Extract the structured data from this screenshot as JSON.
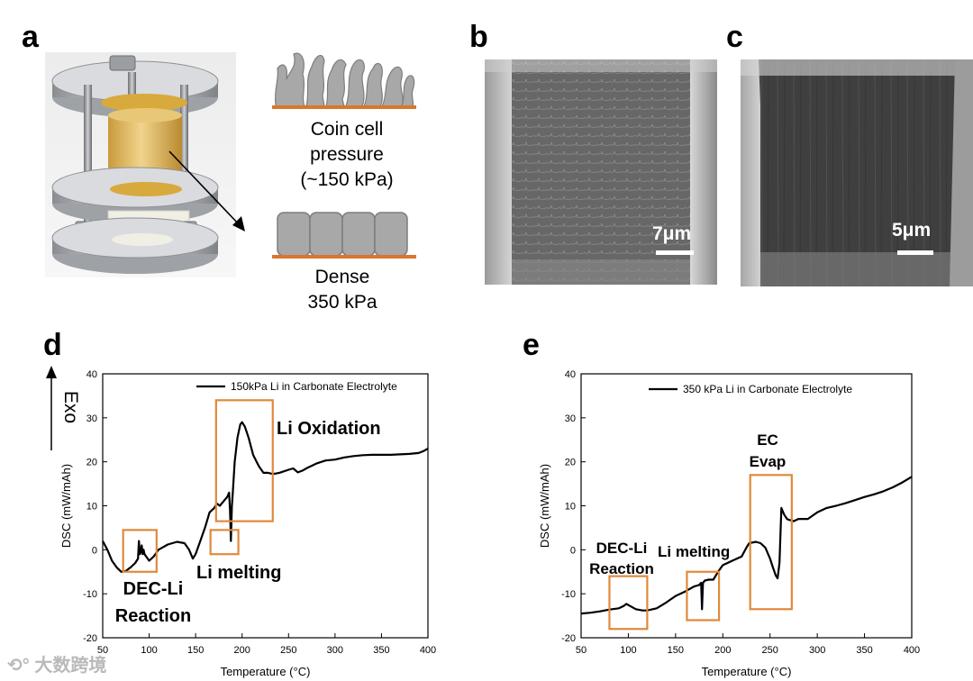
{
  "figure": {
    "panel_letters": {
      "a": "a",
      "b": "b",
      "c": "c",
      "d": "d",
      "e": "e"
    },
    "panel_a": {
      "caption_top": [
        "Coin cell",
        "pressure",
        "(~150 kPa)"
      ],
      "caption_bottom": [
        "Dense",
        "350 kPa"
      ]
    },
    "panel_b": {
      "scale_label": "7μm"
    },
    "panel_c": {
      "scale_label": "5μm"
    },
    "exo_label": "Exo",
    "watermark": "大数跨境",
    "colors": {
      "box": "#E0893A",
      "line": "#000000",
      "electrode": "#D9772E",
      "grain": "#A8A8A8"
    }
  },
  "chart_data": [
    {
      "id": "d",
      "type": "line",
      "title": "",
      "legend": "150kPa Li in Carbonate Electrolyte",
      "legend_placement": "top-right",
      "xlabel": "Temperature (°C)",
      "ylabel": "DSC (mW/mAh)",
      "xlim": [
        50,
        400
      ],
      "ylim": [
        -20,
        40
      ],
      "xticks": [
        50,
        100,
        150,
        200,
        250,
        300,
        350,
        400
      ],
      "yticks": [
        -20,
        -10,
        0,
        10,
        20,
        30,
        40
      ],
      "series": [
        {
          "name": "150kPa Li in Carbonate Electrolyte",
          "x": [
            50,
            55,
            60,
            65,
            70,
            75,
            80,
            85,
            88,
            89,
            90,
            91,
            92,
            93,
            94,
            95,
            100,
            105,
            110,
            120,
            130,
            138,
            143,
            147,
            150,
            155,
            160,
            165,
            170,
            173,
            176,
            180,
            184,
            186,
            187,
            188,
            189,
            190,
            192,
            195,
            198,
            200,
            203,
            207,
            212,
            218,
            223,
            228,
            232,
            235,
            240,
            250,
            255,
            260,
            265,
            270,
            280,
            290,
            300,
            310,
            320,
            330,
            340,
            350,
            360,
            370,
            380,
            390,
            395,
            400
          ],
          "y": [
            2,
            0,
            -2.5,
            -4,
            -5,
            -4.8,
            -4,
            -3,
            -2,
            2,
            -1,
            -0.5,
            1,
            -1,
            0,
            -1,
            -2.5,
            -1.5,
            0,
            1.2,
            1.8,
            1.5,
            0,
            -2,
            -1,
            2,
            5,
            8.5,
            9.5,
            10.5,
            10,
            11,
            12,
            13,
            9,
            2,
            10,
            13,
            20,
            25.5,
            28.5,
            29,
            28,
            25.5,
            21.5,
            19,
            17.5,
            17.5,
            17.3,
            17.3,
            17.5,
            18.2,
            18.5,
            17.6,
            18,
            18.6,
            19.6,
            20.3,
            20.5,
            21,
            21.3,
            21.5,
            21.6,
            21.6,
            21.6,
            21.7,
            21.8,
            22,
            22.4,
            23
          ]
        }
      ],
      "annotations": [
        {
          "text": "Li Oxidation",
          "box": {
            "x0": 172,
            "x1": 233,
            "y0": 6.5,
            "y1": 34
          }
        },
        {
          "text": "Li melting",
          "box": {
            "x0": 166,
            "x1": 196,
            "y0": -1,
            "y1": 4.5
          }
        },
        {
          "text": "DEC-Li Reaction",
          "lines": [
            "DEC-Li",
            "Reaction"
          ],
          "box": {
            "x0": 72,
            "x1": 108,
            "y0": -5,
            "y1": 4.5
          }
        }
      ]
    },
    {
      "id": "e",
      "type": "line",
      "title": "",
      "legend": "350 kPa Li in Carbonate Electrolyte",
      "legend_placement": "top-right",
      "xlabel": "Temperature (°C)",
      "ylabel": "DSC (mW/mAh)",
      "xlim": [
        50,
        400
      ],
      "ylim": [
        -20,
        40
      ],
      "xticks": [
        50,
        100,
        150,
        200,
        250,
        300,
        350,
        400
      ],
      "yticks": [
        -20,
        -10,
        0,
        10,
        20,
        30,
        40
      ],
      "series": [
        {
          "name": "350 kPa Li in Carbonate Electrolyte",
          "x": [
            50,
            60,
            70,
            80,
            90,
            95,
            98,
            102,
            108,
            115,
            120,
            130,
            140,
            150,
            160,
            170,
            175,
            177,
            178,
            179,
            181,
            185,
            190,
            195,
            200,
            205,
            210,
            215,
            220,
            225,
            228,
            235,
            240,
            245,
            250,
            253,
            256,
            258,
            260,
            261,
            262,
            265,
            268,
            270,
            275,
            280,
            285,
            290,
            300,
            310,
            320,
            330,
            340,
            350,
            360,
            370,
            380,
            390,
            400
          ],
          "y": [
            -14.5,
            -14.3,
            -14,
            -13.6,
            -13.3,
            -12.8,
            -12.3,
            -12.8,
            -13.5,
            -13.8,
            -13.8,
            -13.3,
            -12,
            -10.5,
            -9.5,
            -8.3,
            -8,
            -7.5,
            -13.5,
            -7.5,
            -7,
            -6.8,
            -6.8,
            -5,
            -3.5,
            -3,
            -2.5,
            -2,
            -1.5,
            0.5,
            1.5,
            1.8,
            1.5,
            0.5,
            -2,
            -4,
            -5.8,
            -6.5,
            -3,
            3,
            9.5,
            8,
            7,
            6.8,
            6.5,
            7,
            7,
            7,
            8.5,
            9.5,
            10,
            10.6,
            11.3,
            12,
            12.6,
            13.3,
            14.2,
            15.3,
            16.6
          ]
        }
      ],
      "annotations": [
        {
          "text": "EC Evap",
          "lines": [
            "EC",
            "Evap"
          ],
          "box": {
            "x0": 229,
            "x1": 273,
            "y0": -13.5,
            "y1": 17
          }
        },
        {
          "text": "Li melting",
          "box": {
            "x0": 162,
            "x1": 196,
            "y0": -16,
            "y1": -5
          }
        },
        {
          "text": "DEC-Li Reaction",
          "lines": [
            "DEC-Li",
            "Reaction"
          ],
          "box": {
            "x0": 80,
            "x1": 120,
            "y0": -18,
            "y1": -6
          }
        }
      ]
    }
  ]
}
